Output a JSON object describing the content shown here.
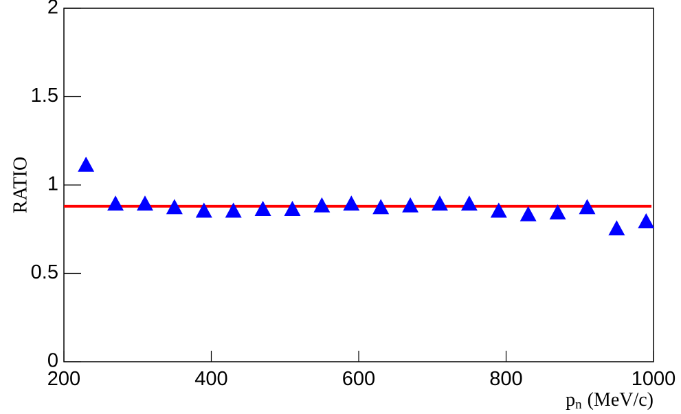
{
  "chart_data": {
    "type": "scatter",
    "x_label": {
      "main": "p",
      "sub": "n",
      "unit": "(MeV/c)"
    },
    "y_label": "RATIO",
    "x": [
      230,
      270,
      310,
      350,
      390,
      430,
      470,
      510,
      550,
      590,
      630,
      670,
      710,
      750,
      790,
      830,
      870,
      910,
      950,
      990
    ],
    "series": [
      {
        "name": "ratio",
        "color": "#0000ff",
        "values": [
          1.11,
          0.89,
          0.89,
          0.87,
          0.85,
          0.85,
          0.86,
          0.86,
          0.88,
          0.89,
          0.87,
          0.88,
          0.89,
          0.89,
          0.85,
          0.83,
          0.84,
          0.87,
          0.75,
          0.79
        ]
      }
    ],
    "fit": {
      "value": 0.88,
      "color": "#ff0000"
    },
    "xlim": [
      200,
      1000
    ],
    "ylim": [
      0,
      2
    ],
    "xticks": [
      200,
      400,
      600,
      800,
      1000
    ],
    "yticks": [
      0,
      0.5,
      1,
      1.5,
      2
    ]
  }
}
